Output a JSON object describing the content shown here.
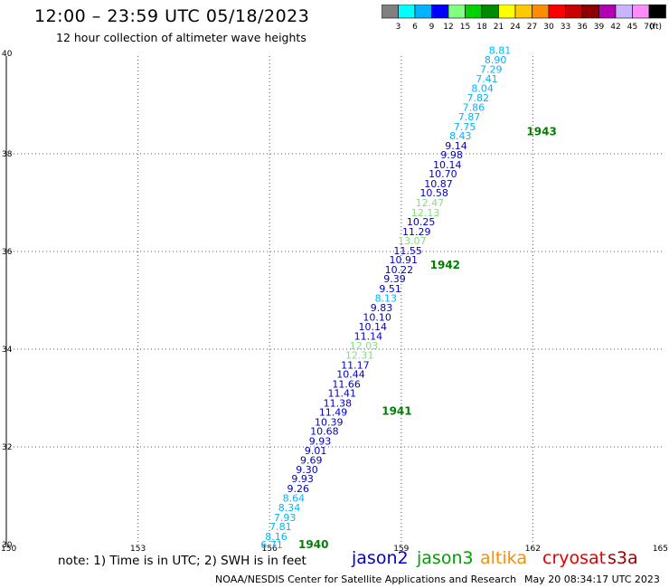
{
  "header": {
    "title": "12:00 – 23:59 UTC 05/18/2023",
    "subtitle": "12 hour collection of altimeter wave heights"
  },
  "color_scale": {
    "colors": [
      "#808080",
      "#00ffff",
      "#00b4ff",
      "#0000ff",
      "#80ff80",
      "#00d200",
      "#008c00",
      "#ffff00",
      "#ffc800",
      "#ff8c00",
      "#ff0000",
      "#c80000",
      "#8c0000",
      "#b400b4",
      "#c8b4ff",
      "#ff8cff",
      "#000000"
    ],
    "labels": [
      "3",
      "6",
      "9",
      "12",
      "15",
      "18",
      "21",
      "24",
      "27",
      "30",
      "33",
      "36",
      "39",
      "42",
      "45",
      "70"
    ],
    "unit": "(ft)"
  },
  "note": "note: 1) Time is in UTC; 2) SWH is in feet",
  "satellites": [
    {
      "name": "jason2",
      "color": "#0000d0"
    },
    {
      "name": "jason3",
      "color": "#00a000"
    },
    {
      "name": "altika",
      "color": "#ff8c00"
    },
    {
      "name": "cryosat",
      "color": "#e00000"
    },
    {
      "name": "s3a",
      "color": "#a00000"
    }
  ],
  "footer": {
    "credit": "NOAA/NESDIS Center for Satellite Applications and Research",
    "timestamp": "May 20 08:34:17 UTC 2023"
  },
  "chart_data": {
    "type": "scatter",
    "xlim": [
      150,
      165
    ],
    "ylim": [
      30,
      40
    ],
    "xticks": [
      "150",
      "153",
      "156",
      "159",
      "162",
      "165"
    ],
    "yticks": [
      "30",
      "32",
      "34",
      "36",
      "38",
      "40"
    ],
    "grid": true,
    "time_labels": [
      {
        "text": "1940",
        "x": 157.0,
        "y": 30.0
      },
      {
        "text": "1941",
        "x": 158.9,
        "y": 32.73
      },
      {
        "text": "1942",
        "x": 160.0,
        "y": 35.72
      },
      {
        "text": "1943",
        "x": 162.2,
        "y": 38.45
      }
    ],
    "points": [
      {
        "x": 156.05,
        "y": 30.0,
        "value": "6.71",
        "color": "#00b4ff"
      },
      {
        "x": 156.15,
        "y": 30.17,
        "value": "8.16",
        "color": "#00b4ff"
      },
      {
        "x": 156.25,
        "y": 30.37,
        "value": "7.81",
        "color": "#00b4ff"
      },
      {
        "x": 156.35,
        "y": 30.56,
        "value": "7.93",
        "color": "#00b4ff"
      },
      {
        "x": 156.45,
        "y": 30.76,
        "value": "8.34",
        "color": "#00b4ff"
      },
      {
        "x": 156.55,
        "y": 30.95,
        "value": "8.64",
        "color": "#00b4ff"
      },
      {
        "x": 156.65,
        "y": 31.15,
        "value": "9.26",
        "color": "#0000c0"
      },
      {
        "x": 156.75,
        "y": 31.35,
        "value": "9.93",
        "color": "#0000c0"
      },
      {
        "x": 156.85,
        "y": 31.54,
        "value": "9.30",
        "color": "#0000c0"
      },
      {
        "x": 156.95,
        "y": 31.73,
        "value": "9.69",
        "color": "#0000c0"
      },
      {
        "x": 157.05,
        "y": 31.93,
        "value": "9.01",
        "color": "#0000c0"
      },
      {
        "x": 157.15,
        "y": 32.12,
        "value": "9.93",
        "color": "#0000c0"
      },
      {
        "x": 157.25,
        "y": 32.32,
        "value": "10.68",
        "color": "#0000c0"
      },
      {
        "x": 157.35,
        "y": 32.51,
        "value": "10.39",
        "color": "#0000c0"
      },
      {
        "x": 157.45,
        "y": 32.71,
        "value": "11.49",
        "color": "#0000c0"
      },
      {
        "x": 157.55,
        "y": 32.9,
        "value": "11.38",
        "color": "#0000c0"
      },
      {
        "x": 157.65,
        "y": 33.1,
        "value": "11.41",
        "color": "#0000c0"
      },
      {
        "x": 157.75,
        "y": 33.29,
        "value": "11.66",
        "color": "#0000c0"
      },
      {
        "x": 157.85,
        "y": 33.49,
        "value": "10.44",
        "color": "#0000c0"
      },
      {
        "x": 157.95,
        "y": 33.68,
        "value": "11.17",
        "color": "#0000c0"
      },
      {
        "x": 158.05,
        "y": 33.88,
        "value": "12.31",
        "color": "#80e080"
      },
      {
        "x": 158.15,
        "y": 34.07,
        "value": "12.03",
        "color": "#80e080"
      },
      {
        "x": 158.25,
        "y": 34.27,
        "value": "11.14",
        "color": "#0000c0"
      },
      {
        "x": 158.35,
        "y": 34.46,
        "value": "10.14",
        "color": "#0000c0"
      },
      {
        "x": 158.45,
        "y": 34.66,
        "value": "10.10",
        "color": "#0000c0"
      },
      {
        "x": 158.55,
        "y": 34.85,
        "value": "9.83",
        "color": "#0000c0"
      },
      {
        "x": 158.65,
        "y": 35.05,
        "value": "8.13",
        "color": "#00b4ff"
      },
      {
        "x": 158.75,
        "y": 35.24,
        "value": "9.51",
        "color": "#0000c0"
      },
      {
        "x": 158.85,
        "y": 35.44,
        "value": "9.39",
        "color": "#0000c0"
      },
      {
        "x": 158.95,
        "y": 35.63,
        "value": "10.22",
        "color": "#0000c0"
      },
      {
        "x": 159.05,
        "y": 35.83,
        "value": "10.91",
        "color": "#0000c0"
      },
      {
        "x": 159.15,
        "y": 36.02,
        "value": "11.55",
        "color": "#0000c0"
      },
      {
        "x": 159.25,
        "y": 36.22,
        "value": "13.07",
        "color": "#80e080"
      },
      {
        "x": 159.35,
        "y": 36.41,
        "value": "11.29",
        "color": "#0000c0"
      },
      {
        "x": 159.45,
        "y": 36.61,
        "value": "10.25",
        "color": "#0000c0"
      },
      {
        "x": 159.55,
        "y": 36.8,
        "value": "12.13",
        "color": "#80e080"
      },
      {
        "x": 159.65,
        "y": 37.0,
        "value": "12.47",
        "color": "#80e080"
      },
      {
        "x": 159.75,
        "y": 37.2,
        "value": "10.58",
        "color": "#0000c0"
      },
      {
        "x": 159.85,
        "y": 37.39,
        "value": "10.87",
        "color": "#0000c0"
      },
      {
        "x": 159.95,
        "y": 37.59,
        "value": "10.70",
        "color": "#0000c0"
      },
      {
        "x": 160.05,
        "y": 37.78,
        "value": "10.14",
        "color": "#0000c0"
      },
      {
        "x": 160.15,
        "y": 37.98,
        "value": "9.98",
        "color": "#0000c0"
      },
      {
        "x": 160.25,
        "y": 38.17,
        "value": "9.14",
        "color": "#0000c0"
      },
      {
        "x": 160.35,
        "y": 38.37,
        "value": "8.43",
        "color": "#00b4ff"
      },
      {
        "x": 160.45,
        "y": 38.56,
        "value": "7.75",
        "color": "#00b4ff"
      },
      {
        "x": 160.55,
        "y": 38.76,
        "value": "7.87",
        "color": "#00b4ff"
      },
      {
        "x": 160.65,
        "y": 38.95,
        "value": "7.86",
        "color": "#00b4ff"
      },
      {
        "x": 160.75,
        "y": 39.15,
        "value": "7.82",
        "color": "#00b4ff"
      },
      {
        "x": 160.85,
        "y": 39.34,
        "value": "8.04",
        "color": "#00b4ff"
      },
      {
        "x": 160.95,
        "y": 39.54,
        "value": "7.41",
        "color": "#00b4ff"
      },
      {
        "x": 161.05,
        "y": 39.73,
        "value": "7.29",
        "color": "#00b4ff"
      },
      {
        "x": 161.15,
        "y": 39.93,
        "value": "8.90",
        "color": "#00b4ff"
      },
      {
        "x": 161.25,
        "y": 40.12,
        "value": "8.81",
        "color": "#00b4ff"
      }
    ]
  }
}
